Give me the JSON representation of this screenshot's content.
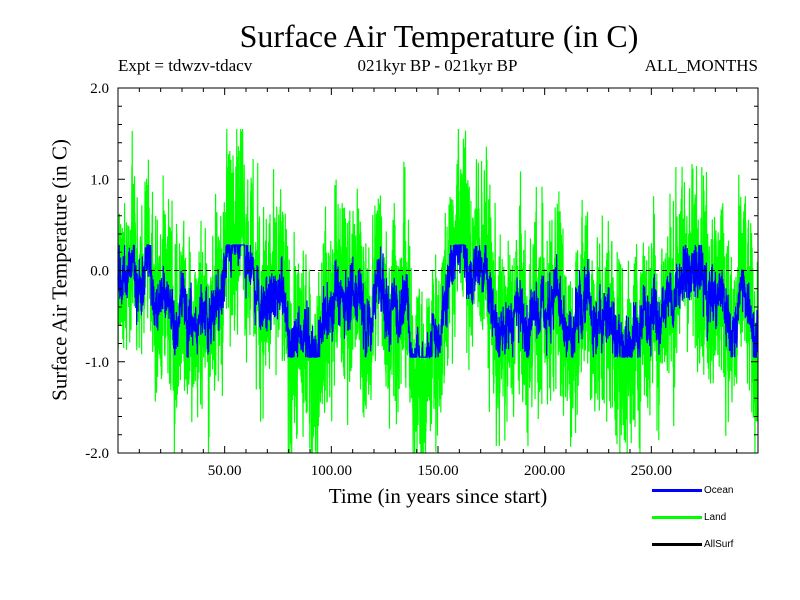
{
  "chart_data": {
    "type": "line",
    "title": "Surface Air Temperature (in C)",
    "subtitle_left": "Expt = tdwzv-tdacv",
    "subtitle_center": "021kyr BP - 021kyr BP",
    "subtitle_right": "ALL_MONTHS",
    "xlabel": "Time (in years since start)",
    "ylabel": "Surface Air Temperature (in C)",
    "xlim": [
      0,
      300
    ],
    "ylim": [
      -2.0,
      2.0
    ],
    "xticks": [
      50,
      100,
      150,
      200,
      250
    ],
    "xtick_labels": [
      "50.00",
      "100.00",
      "150.00",
      "200.00",
      "250.00"
    ],
    "yticks": [
      -2.0,
      -1.0,
      0.0,
      1.0,
      2.0
    ],
    "ytick_labels": [
      "-2.0",
      "-1.0",
      "0.0",
      "1.0",
      "2.0"
    ],
    "zero_line": true,
    "legend_position": "bottom-right",
    "series": [
      {
        "name": "Ocean",
        "color": "#0000ff",
        "mean": -0.35,
        "spread": 0.45,
        "yrange": [
          -0.95,
          0.28
        ]
      },
      {
        "name": "Land",
        "color": "#00ff00",
        "mean": -0.32,
        "spread": 1.6,
        "yrange": [
          -2.0,
          1.55
        ]
      },
      {
        "name": "AllSurf",
        "color": "#000000"
      }
    ]
  }
}
